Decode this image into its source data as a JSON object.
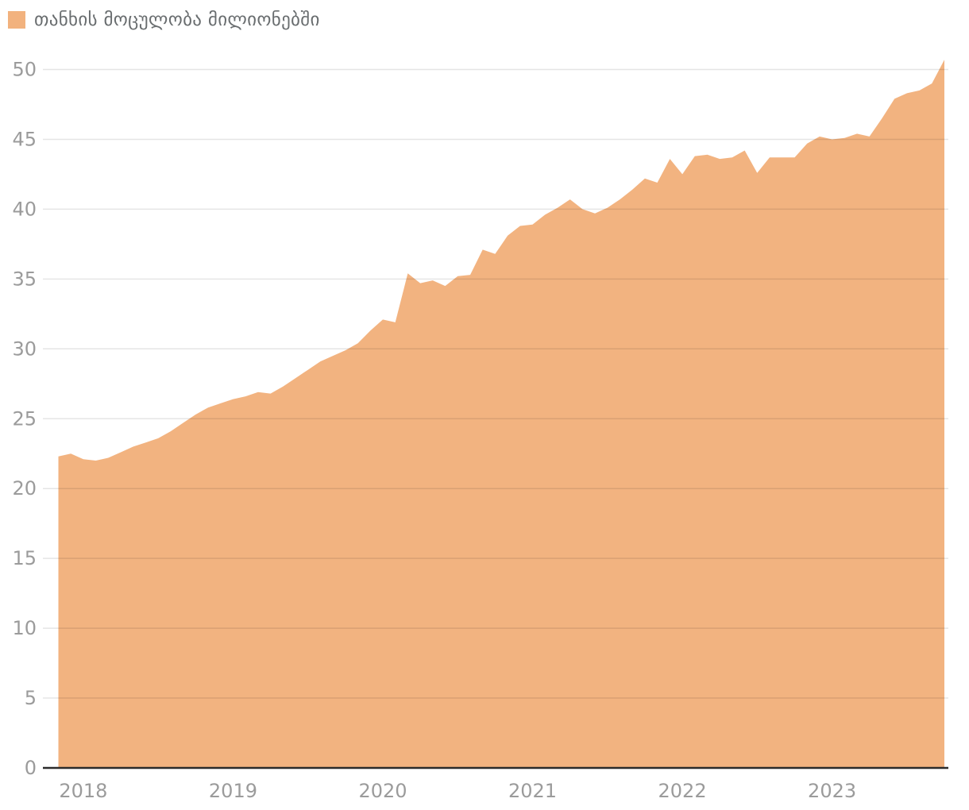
{
  "legend": {
    "label": "თანხის მოცულობა მილიონებში",
    "swatch_color": "#F2B27E"
  },
  "chart_data": {
    "type": "area",
    "title": "",
    "series_name": "თანხის მოცულობა მილიონებში",
    "frequency": "monthly",
    "start": "2017-11",
    "end": "2023-10",
    "x": [
      "2017-11",
      "2017-12",
      "2018-01",
      "2018-02",
      "2018-03",
      "2018-04",
      "2018-05",
      "2018-06",
      "2018-07",
      "2018-08",
      "2018-09",
      "2018-10",
      "2018-11",
      "2018-12",
      "2019-01",
      "2019-02",
      "2019-03",
      "2019-04",
      "2019-05",
      "2019-06",
      "2019-07",
      "2019-08",
      "2019-09",
      "2019-10",
      "2019-11",
      "2019-12",
      "2020-01",
      "2020-02",
      "2020-03",
      "2020-04",
      "2020-05",
      "2020-06",
      "2020-07",
      "2020-08",
      "2020-09",
      "2020-10",
      "2020-11",
      "2020-12",
      "2021-01",
      "2021-02",
      "2021-03",
      "2021-04",
      "2021-05",
      "2021-06",
      "2021-07",
      "2021-08",
      "2021-09",
      "2021-10",
      "2021-11",
      "2021-12",
      "2022-01",
      "2022-02",
      "2022-03",
      "2022-04",
      "2022-05",
      "2022-06",
      "2022-07",
      "2022-08",
      "2022-09",
      "2022-10",
      "2022-11",
      "2022-12",
      "2023-01",
      "2023-02",
      "2023-03",
      "2023-04",
      "2023-05",
      "2023-06",
      "2023-07",
      "2023-08",
      "2023-09",
      "2023-10"
    ],
    "values": [
      22.3,
      22.5,
      22.1,
      22.0,
      22.2,
      22.6,
      23.0,
      23.3,
      23.6,
      24.1,
      24.7,
      25.3,
      25.8,
      26.1,
      26.4,
      26.6,
      26.9,
      26.8,
      27.3,
      27.9,
      28.5,
      29.1,
      29.5,
      29.9,
      30.4,
      31.3,
      32.1,
      31.9,
      35.4,
      34.7,
      34.9,
      34.5,
      35.2,
      35.3,
      37.1,
      36.8,
      38.1,
      38.8,
      38.9,
      39.6,
      40.1,
      40.7,
      40.0,
      39.7,
      40.1,
      40.7,
      41.4,
      42.2,
      41.9,
      43.6,
      42.5,
      43.8,
      43.9,
      43.6,
      43.7,
      44.2,
      42.6,
      43.7,
      43.7,
      43.7,
      44.7,
      45.2,
      45.0,
      45.1,
      45.4,
      45.2,
      46.5,
      47.9,
      48.3,
      48.5,
      49.0,
      50.7
    ],
    "y_ticks": [
      0,
      5,
      10,
      15,
      20,
      25,
      30,
      35,
      40,
      45,
      50
    ],
    "y_tick_labels": [
      "0",
      "5",
      "10",
      "15",
      "20",
      "25",
      "30",
      "35",
      "40",
      "45",
      "50"
    ],
    "x_ticks": [
      {
        "label": "2018",
        "month_index": 2
      },
      {
        "label": "2019",
        "month_index": 14
      },
      {
        "label": "2020",
        "month_index": 26
      },
      {
        "label": "2021",
        "month_index": 38
      },
      {
        "label": "2022",
        "month_index": 50
      },
      {
        "label": "2023",
        "month_index": 62
      }
    ],
    "ylim": [
      0,
      52
    ],
    "grid": "horizontal",
    "legend_position": "top-left",
    "colors": {
      "area_fill": "#F2B380",
      "grid_line": "rgba(0,0,0,0.10)",
      "axis_line": "#2B2B2B",
      "tick_label": "#9B9B9B",
      "legend_text": "#696D6F"
    }
  }
}
